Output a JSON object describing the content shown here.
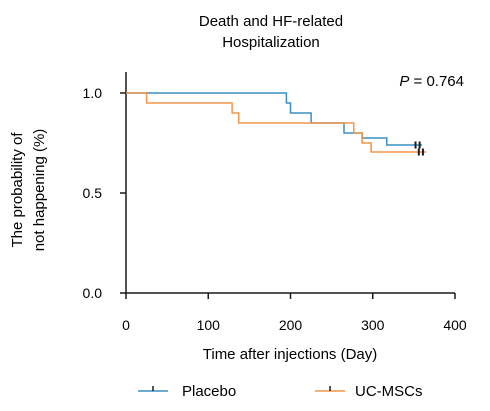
{
  "chart_data": {
    "type": "line",
    "title_lines": [
      "Death and HF-related",
      "Hospitalization"
    ],
    "xlabel": "Time after injections (Day)",
    "ylabel_lines": [
      "The probability of",
      "not happening (%)"
    ],
    "xlim": [
      0,
      400
    ],
    "ylim": [
      0,
      1.0
    ],
    "x_ticks": [
      0,
      100,
      200,
      300,
      400
    ],
    "y_ticks": [
      0.0,
      0.5,
      1.0
    ],
    "x_tick_labels": [
      "0",
      "100",
      "200",
      "300",
      "400"
    ],
    "y_tick_labels": [
      "0.0",
      "0.5",
      "1.0"
    ],
    "grid": false,
    "legend_position": "bottom",
    "annotation": {
      "prefix": "P",
      "text": " = 0.764"
    },
    "series": [
      {
        "name": "Placebo",
        "color": "#3a8fc4",
        "steps": [
          [
            0,
            1.0
          ],
          [
            195,
            1.0
          ],
          [
            195,
            0.95
          ],
          [
            200,
            0.95
          ],
          [
            200,
            0.9
          ],
          [
            225,
            0.9
          ],
          [
            225,
            0.85
          ],
          [
            265,
            0.85
          ],
          [
            265,
            0.8
          ],
          [
            287,
            0.8
          ],
          [
            287,
            0.775
          ],
          [
            317,
            0.775
          ],
          [
            317,
            0.74
          ],
          [
            360,
            0.74
          ]
        ],
        "censored": [
          [
            352,
            0.74
          ],
          [
            357,
            0.74
          ]
        ]
      },
      {
        "name": "UC-MSCs",
        "color": "#f0964a",
        "steps": [
          [
            0,
            1.0
          ],
          [
            25,
            1.0
          ],
          [
            25,
            0.95
          ],
          [
            129,
            0.95
          ],
          [
            129,
            0.9
          ],
          [
            137,
            0.9
          ],
          [
            137,
            0.85
          ],
          [
            277,
            0.85
          ],
          [
            277,
            0.8
          ],
          [
            287,
            0.8
          ],
          [
            287,
            0.75
          ],
          [
            298,
            0.75
          ],
          [
            298,
            0.705
          ],
          [
            365,
            0.705
          ]
        ],
        "censored": [
          [
            356,
            0.705
          ],
          [
            361,
            0.705
          ]
        ]
      }
    ]
  }
}
